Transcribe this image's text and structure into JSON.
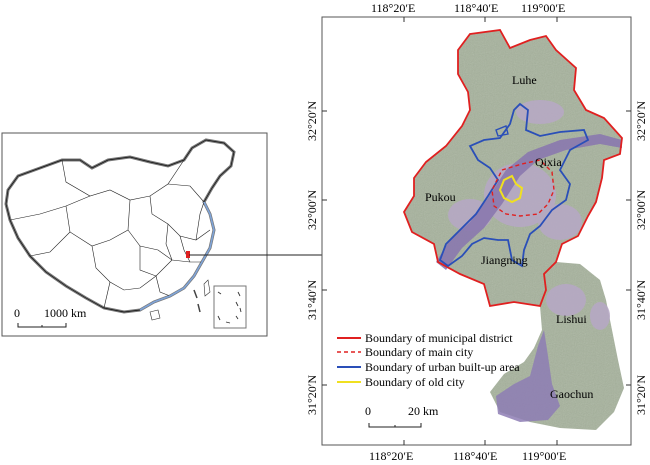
{
  "inset_map": {
    "scale_bar": {
      "start_label": "0",
      "end_label": "1000 km"
    }
  },
  "main_map": {
    "top_ticks": [
      "118°20′E",
      "118°40′E",
      "119°00′E"
    ],
    "bottom_ticks": [
      "118°20′E",
      "118°40′E",
      "119°00′E"
    ],
    "left_ticks": [
      "32°20′N",
      "32°00′N",
      "31°40′N",
      "31°20′N"
    ],
    "right_ticks": [
      "32°20′N",
      "32°00′N",
      "31°40′N",
      "31°20′N"
    ],
    "district_labels": {
      "luhe": "Luhe",
      "qixia": "Qixia",
      "pukou": "Pukou",
      "jiangning": "Jiangning",
      "lishui": "Lishui",
      "gaochun": "Gaochun"
    },
    "legend": [
      {
        "label": "Boundary of municipal district",
        "color": "#e02020",
        "style": "solid"
      },
      {
        "label": "Boundary of main city",
        "color": "#e02020",
        "style": "dashed"
      },
      {
        "label": "Boundary of urban built-up area",
        "color": "#2a4fb8",
        "style": "solid"
      },
      {
        "label": "Boundary of old city",
        "color": "#f0e020",
        "style": "solid"
      }
    ],
    "scale_bar": {
      "start_label": "0",
      "end_label": "20 km"
    }
  },
  "colors": {
    "land": "#a9b3a0",
    "urban": "#b6a7c4",
    "river": "#8b7ab0",
    "district": "#e02020",
    "built_up": "#2a4fb8",
    "old_city": "#f0e020"
  }
}
